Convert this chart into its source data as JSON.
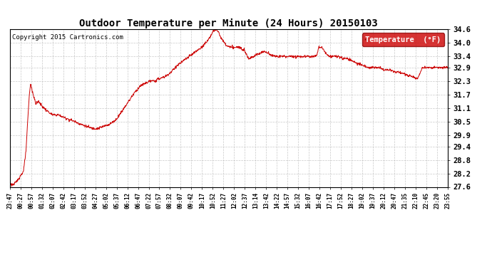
{
  "title": "Outdoor Temperature per Minute (24 Hours) 20150103",
  "copyright_text": "Copyright 2015 Cartronics.com",
  "legend_label": "Temperature  (°F)",
  "legend_bg": "#cc0000",
  "legend_text_color": "#ffffff",
  "line_color": "#cc0000",
  "bg_color": "#ffffff",
  "plot_bg_color": "#ffffff",
  "grid_color": "#bbbbbb",
  "ylim": [
    27.6,
    34.6
  ],
  "yticks": [
    27.6,
    28.2,
    28.8,
    29.4,
    29.9,
    30.5,
    31.1,
    31.7,
    32.3,
    32.9,
    33.4,
    34.0,
    34.6
  ],
  "xtick_labels": [
    "23:47",
    "00:27",
    "00:57",
    "01:32",
    "02:07",
    "02:42",
    "03:17",
    "03:52",
    "04:27",
    "05:02",
    "05:37",
    "06:12",
    "06:47",
    "07:22",
    "07:57",
    "08:32",
    "09:07",
    "09:42",
    "10:17",
    "10:52",
    "11:27",
    "12:02",
    "12:37",
    "13:14",
    "13:42",
    "14:22",
    "14:57",
    "15:32",
    "16:07",
    "16:42",
    "17:17",
    "17:52",
    "18:27",
    "19:02",
    "19:37",
    "20:12",
    "20:47",
    "21:35",
    "22:10",
    "22:45",
    "23:20",
    "23:55"
  ]
}
